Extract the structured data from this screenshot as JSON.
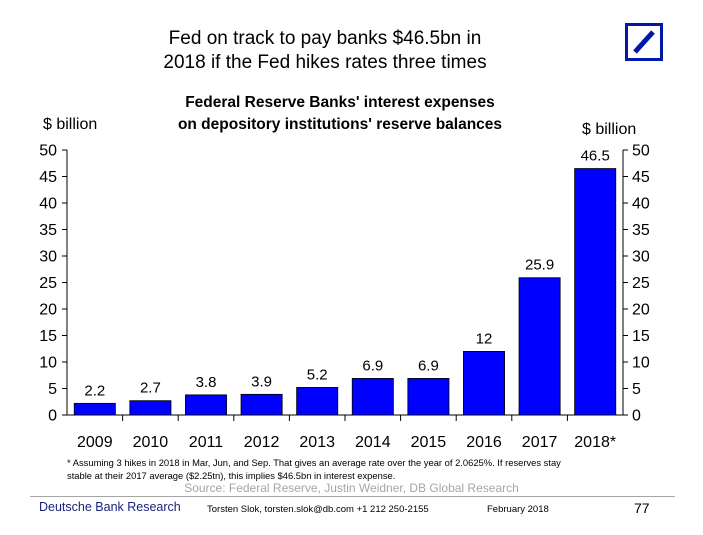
{
  "header": {
    "headline_line1": "Fed on track to pay banks $46.5bn in",
    "headline_line2": "2018 if the Fed hikes rates three times"
  },
  "brand_color": "#0018a8",
  "bar_color": "#0000ff",
  "chart_data": {
    "type": "bar",
    "title_line1": "Federal Reserve Banks' interest expenses",
    "title_line2": "on depository institutions' reserve balances",
    "ylabel_left": "$ billion",
    "ylabel_right": "$ billion",
    "categories": [
      "2009",
      "2010",
      "2011",
      "2012",
      "2013",
      "2014",
      "2015",
      "2016",
      "2017",
      "2018*"
    ],
    "values": [
      2.2,
      2.7,
      3.8,
      3.9,
      5.2,
      6.9,
      6.9,
      12,
      25.9,
      46.5
    ],
    "ylim": [
      0,
      50
    ],
    "yticks": [
      0,
      5,
      10,
      15,
      20,
      25,
      30,
      35,
      40,
      45,
      50
    ],
    "grid": false,
    "data_labels": true
  },
  "footnote": {
    "line1": "* Assuming 3 hikes in 2018 in Mar, Jun, and Sep. That gives an average rate over the year of 2.0625%. If reserves stay",
    "line2": "stable at their 2017 average ($2.25tn), this implies $46.5bn in interest expense."
  },
  "source": "Source: Federal Reserve, Justin Weidner, DB Global Research",
  "footer": {
    "brand": "Deutsche Bank Research",
    "author": "Torsten Slok, torsten.slok@db.com  +1 212 250-2155",
    "date": "February 2018",
    "page": "77"
  }
}
